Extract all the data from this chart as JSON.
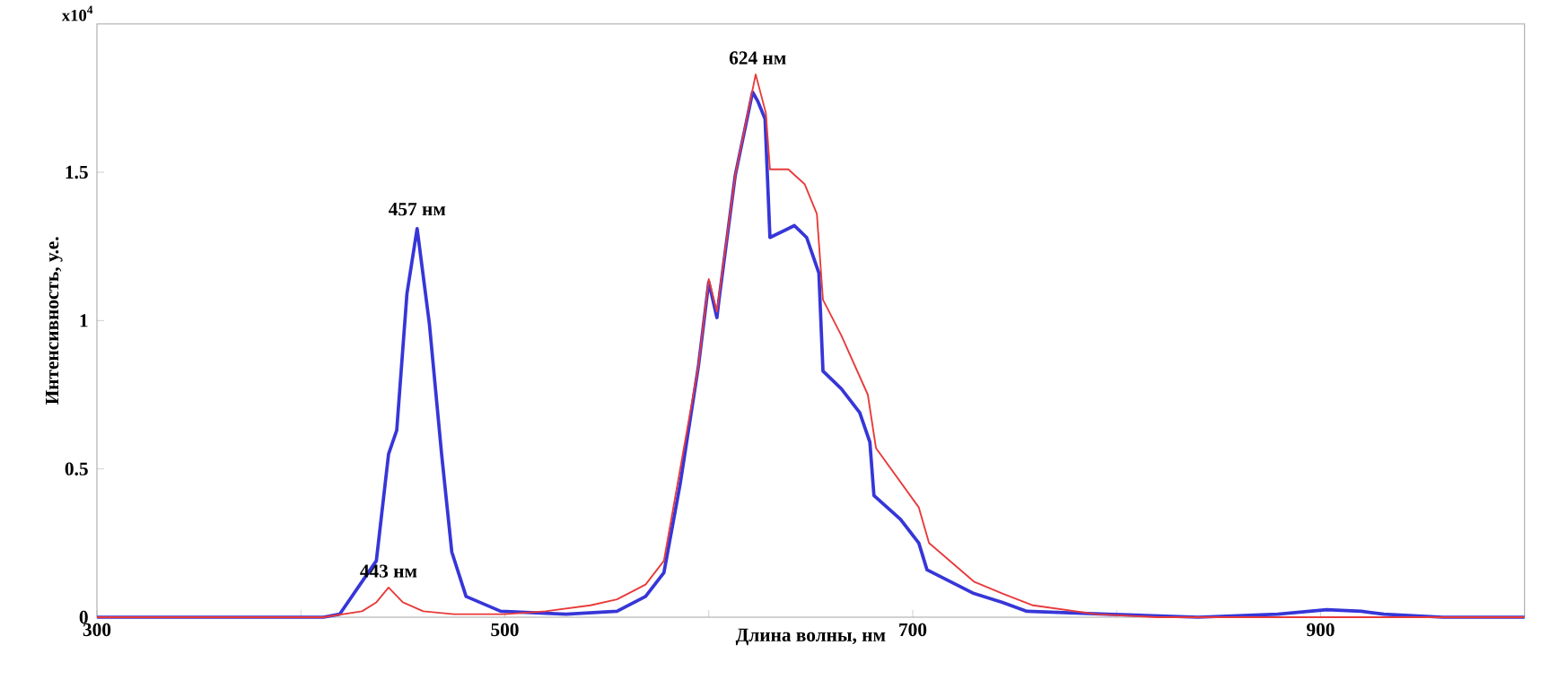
{
  "chart_data": {
    "type": "line",
    "xlabel": "Длина волны, нм",
    "ylabel": "Интенсивность, у.е.",
    "xlim": [
      300,
      1000
    ],
    "ylim": [
      0,
      2
    ],
    "xticks": [
      300,
      {
        "value": 400,
        "label": null
      },
      500,
      {
        "value": 600,
        "label": null
      },
      700,
      {
        "value": 800,
        "label": null
      },
      900
    ],
    "yticks": [
      0,
      0.5,
      1,
      1.5
    ],
    "marker": "none",
    "line_style": "solid",
    "series": [
      {
        "color": "#3636d8",
        "x": [
          300,
          411,
          419,
          437,
          443,
          447,
          452,
          457,
          463,
          469,
          474,
          481,
          498,
          530,
          555,
          569,
          578,
          586,
          595,
          600,
          604,
          605,
          613,
          621.5,
          624,
          627.6,
          630,
          642,
          648,
          654,
          656,
          665,
          674,
          679,
          681,
          694,
          703,
          707,
          730,
          744,
          756,
          795,
          840,
          879,
          903,
          920,
          931,
          960,
          1000
        ],
        "values": [
          0,
          0,
          0.01,
          0.19,
          0.55,
          0.63,
          1.09,
          1.31,
          0.99,
          0.55,
          0.22,
          0.07,
          0.02,
          0.01,
          0.02,
          0.07,
          0.15,
          0.45,
          0.85,
          1.13,
          1.01,
          1.07,
          1.49,
          1.77,
          1.74,
          1.68,
          1.28,
          1.32,
          1.28,
          1.16,
          0.83,
          0.77,
          0.69,
          0.59,
          0.41,
          0.33,
          0.25,
          0.16,
          0.08,
          0.05,
          0.02,
          0.01,
          0,
          0.01,
          0.025,
          0.02,
          0.01,
          0,
          0
        ]
      },
      {
        "color": "#e83a3a",
        "x": [
          300,
          411,
          430,
          437,
          443,
          450,
          460,
          475,
          500,
          520,
          542,
          555,
          569,
          578,
          586,
          595,
          600,
          604,
          613,
          623,
          628,
          630,
          639,
          647,
          653,
          656,
          665,
          678,
          682,
          703,
          708,
          730,
          744,
          759,
          790,
          820,
          1000
        ],
        "values": [
          0,
          0,
          0.02,
          0.05,
          0.1,
          0.05,
          0.02,
          0.01,
          0.01,
          0.02,
          0.04,
          0.06,
          0.11,
          0.19,
          0.5,
          0.85,
          1.14,
          1.03,
          1.49,
          1.83,
          1.7,
          1.51,
          1.51,
          1.46,
          1.36,
          1.07,
          0.95,
          0.75,
          0.57,
          0.37,
          0.25,
          0.12,
          0.08,
          0.04,
          0.01,
          0,
          0
        ]
      }
    ],
    "annotations": [
      "x10$^{4}$",
      {
        "text": "457 нм",
        "x": 457,
        "y": 1.32
      },
      {
        "text": "443 нм",
        "x": 443,
        "y": 0.1
      },
      {
        "text": "624 нм",
        "x": 624,
        "y": 1.83
      }
    ]
  }
}
